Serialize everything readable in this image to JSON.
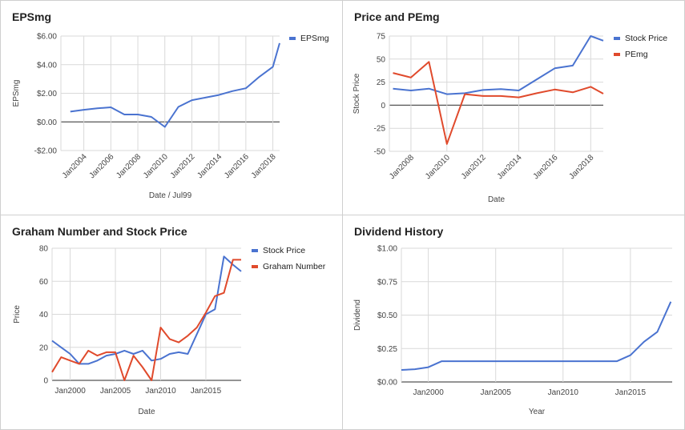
{
  "chart_data": [
    {
      "type": "line",
      "title": "EPSmg",
      "xlabel": "Date / Jul99",
      "ylabel": "EPSmg",
      "x": [
        2003.0,
        2004.0,
        2005.0,
        2006.0,
        2007.0,
        2008.0,
        2009.0,
        2010.0,
        2011.0,
        2012.0,
        2013.0,
        2014.0,
        2015.0,
        2016.0,
        2017.0,
        2018.0,
        2018.5
      ],
      "xticks": [
        {
          "label": "Jan2004",
          "x": 2004
        },
        {
          "label": "Jan2006",
          "x": 2006
        },
        {
          "label": "Jan2008",
          "x": 2008
        },
        {
          "label": "Jan2010",
          "x": 2010
        },
        {
          "label": "Jan2012",
          "x": 2012
        },
        {
          "label": "Jan2014",
          "x": 2014
        },
        {
          "label": "Jan2016",
          "x": 2016
        },
        {
          "label": "Jan2018",
          "x": 2018
        }
      ],
      "yticks": [
        {
          "label": "$6.00",
          "y": 6
        },
        {
          "label": "$4.00",
          "y": 4
        },
        {
          "label": "$2.00",
          "y": 2
        },
        {
          "label": "$0.00",
          "y": 0
        },
        {
          "label": "-$2.00",
          "y": -2
        }
      ],
      "ylim": [
        -2,
        6
      ],
      "grid": true,
      "legend": "right",
      "series": [
        {
          "name": "EPSmg",
          "color": "#4a73d0",
          "values": [
            0.72,
            0.85,
            0.95,
            1.02,
            0.52,
            0.52,
            0.35,
            -0.35,
            1.05,
            1.52,
            1.7,
            1.88,
            2.15,
            2.35,
            3.15,
            3.85,
            5.5
          ]
        }
      ]
    },
    {
      "type": "line",
      "title": "Price and PEmg",
      "xlabel": "Date",
      "ylabel": "Stock Price",
      "x": [
        2007.0,
        2008.0,
        2009.0,
        2010.0,
        2011.0,
        2012.0,
        2013.0,
        2014.0,
        2015.0,
        2016.0,
        2017.0,
        2018.0,
        2018.7
      ],
      "xticks": [
        {
          "label": "Jan2008",
          "x": 2008
        },
        {
          "label": "Jan2010",
          "x": 2010
        },
        {
          "label": "Jan2012",
          "x": 2012
        },
        {
          "label": "Jan2014",
          "x": 2014
        },
        {
          "label": "Jan2016",
          "x": 2016
        },
        {
          "label": "Jan2018",
          "x": 2018
        }
      ],
      "yticks": [
        {
          "label": "75",
          "y": 75
        },
        {
          "label": "50",
          "y": 50
        },
        {
          "label": "25",
          "y": 25
        },
        {
          "label": "0",
          "y": 0
        },
        {
          "label": "-25",
          "y": -25
        },
        {
          "label": "-50",
          "y": -50
        }
      ],
      "ylim": [
        -50,
        75
      ],
      "grid": true,
      "legend": "right",
      "series": [
        {
          "name": "Stock Price",
          "color": "#4a73d0",
          "values": [
            18,
            16,
            18,
            12,
            13,
            16.5,
            17.5,
            16,
            28,
            40,
            43,
            75,
            70
          ]
        },
        {
          "name": "PEmg",
          "color": "#e04a2c",
          "values": [
            35,
            30,
            47,
            -42,
            12,
            10,
            10,
            8.5,
            13,
            17,
            14,
            20,
            12.5
          ]
        }
      ]
    },
    {
      "type": "line",
      "title": "Graham Number and Stock Price",
      "xlabel": "Date",
      "ylabel": "Price",
      "x": [
        1998.0,
        1999.0,
        2000.0,
        2001.0,
        2002.0,
        2003.0,
        2004.0,
        2005.0,
        2006.0,
        2007.0,
        2008.0,
        2009.0,
        2010.0,
        2011.0,
        2012.0,
        2013.0,
        2014.0,
        2015.0,
        2016.0,
        2017.0,
        2018.0,
        2018.9
      ],
      "xticks": [
        {
          "label": "Jan2000",
          "x": 2000
        },
        {
          "label": "Jan2005",
          "x": 2005
        },
        {
          "label": "Jan2010",
          "x": 2010
        },
        {
          "label": "Jan2015",
          "x": 2015
        }
      ],
      "yticks": [
        {
          "label": "80",
          "y": 80
        },
        {
          "label": "60",
          "y": 60
        },
        {
          "label": "40",
          "y": 40
        },
        {
          "label": "20",
          "y": 20
        },
        {
          "label": "0",
          "y": 0
        }
      ],
      "ylim": [
        0,
        80
      ],
      "grid": true,
      "legend": "right",
      "series": [
        {
          "name": "Stock Price",
          "color": "#4a73d0",
          "values": [
            24,
            20,
            16,
            10,
            10,
            12,
            15,
            16,
            18,
            16,
            18,
            12,
            13,
            16,
            17,
            16,
            28,
            40,
            43,
            75,
            70,
            66
          ]
        },
        {
          "name": "Graham Number",
          "color": "#e04a2c",
          "values": [
            5,
            14,
            12,
            10,
            18,
            15,
            17,
            17,
            0,
            15,
            8,
            0,
            32,
            25,
            23,
            27,
            32,
            41,
            51,
            53,
            73,
            73
          ]
        }
      ]
    },
    {
      "type": "line",
      "title": "Dividend History",
      "xlabel": "Year",
      "ylabel": "Dividend",
      "x": [
        1998.0,
        1999.0,
        2000.0,
        2001.0,
        2002.0,
        2003.0,
        2004.0,
        2005.0,
        2006.0,
        2007.0,
        2008.0,
        2009.0,
        2010.0,
        2011.0,
        2012.0,
        2013.0,
        2014.0,
        2015.0,
        2016.0,
        2017.0,
        2018.0
      ],
      "xticks": [
        {
          "label": "Jan2000",
          "x": 2000
        },
        {
          "label": "Jan2005",
          "x": 2005
        },
        {
          "label": "Jan2010",
          "x": 2010
        },
        {
          "label": "Jan2015",
          "x": 2015
        }
      ],
      "yticks": [
        {
          "label": "$1.00",
          "y": 1
        },
        {
          "label": "$0.75",
          "y": 0.75
        },
        {
          "label": "$0.50",
          "y": 0.5
        },
        {
          "label": "$0.25",
          "y": 0.25
        },
        {
          "label": "$0.00",
          "y": 0
        }
      ],
      "ylim": [
        0,
        1
      ],
      "grid": true,
      "legend": "none",
      "series": [
        {
          "name": "",
          "color": "#4a73d0",
          "values": [
            0.09,
            0.095,
            0.11,
            0.155,
            0.155,
            0.155,
            0.155,
            0.155,
            0.155,
            0.155,
            0.155,
            0.155,
            0.155,
            0.155,
            0.155,
            0.155,
            0.155,
            0.2,
            0.3,
            0.375,
            0.6
          ]
        }
      ]
    }
  ]
}
